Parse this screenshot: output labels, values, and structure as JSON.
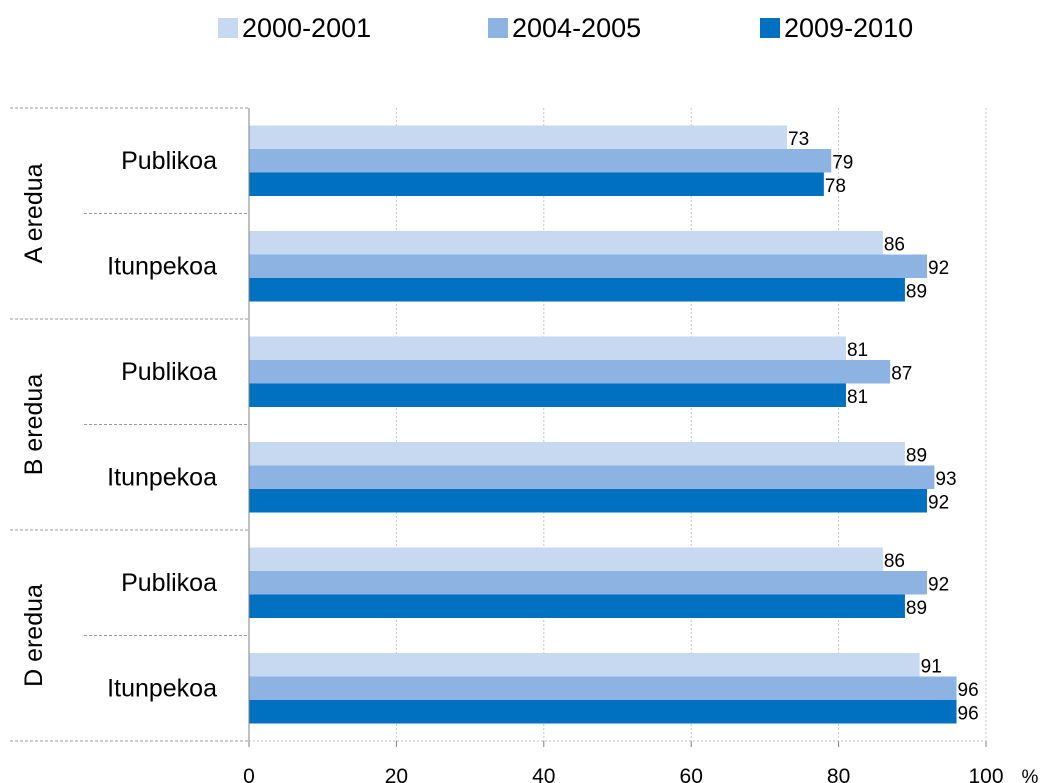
{
  "chart_data": {
    "type": "bar",
    "orientation": "horizontal",
    "xlim": [
      0,
      100
    ],
    "x_ticks": [
      0,
      20,
      40,
      60,
      80,
      100
    ],
    "x_unit": "%",
    "grid": "vertical dotted",
    "legend_position": "top",
    "groups": [
      {
        "label": "A eredua",
        "categories": [
          "Publikoa",
          "Itunpekoa"
        ]
      },
      {
        "label": "B eredua",
        "categories": [
          "Publikoa",
          "Itunpekoa"
        ]
      },
      {
        "label": "D eredua",
        "categories": [
          "Publikoa",
          "Itunpekoa"
        ]
      }
    ],
    "series": [
      {
        "name": "2000-2001",
        "color": "#C6D9F1",
        "values": [
          73,
          86,
          81,
          89,
          86,
          91
        ]
      },
      {
        "name": "2004-2005",
        "color": "#8DB3E2",
        "values": [
          79,
          92,
          87,
          93,
          92,
          96
        ]
      },
      {
        "name": "2009-2010",
        "color": "#0070C0",
        "values": [
          78,
          89,
          81,
          92,
          89,
          96
        ]
      }
    ]
  }
}
